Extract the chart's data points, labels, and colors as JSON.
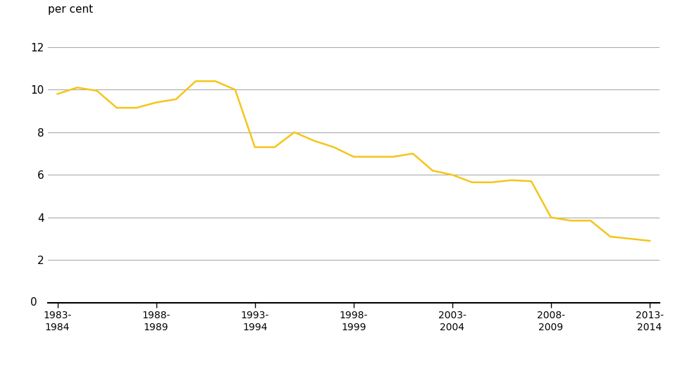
{
  "x_labels": [
    "1983-\n1984",
    "1988-\n1989",
    "1993-\n1994",
    "1998-\n1999",
    "2003-\n2004",
    "2008-\n2009",
    "2013-\n2014"
  ],
  "x_tick_positions": [
    0,
    5,
    10,
    15,
    20,
    25,
    30
  ],
  "years": [
    0,
    1,
    2,
    3,
    4,
    5,
    6,
    7,
    8,
    9,
    10,
    11,
    12,
    13,
    14,
    15,
    16,
    17,
    18,
    19,
    20,
    21,
    22,
    23,
    24,
    25,
    26,
    27,
    28,
    29,
    30
  ],
  "values": [
    9.8,
    10.1,
    9.95,
    9.15,
    9.15,
    9.4,
    9.55,
    10.4,
    10.4,
    10.0,
    7.3,
    7.3,
    8.0,
    7.6,
    7.3,
    6.85,
    6.85,
    6.85,
    7.0,
    6.2,
    6.0,
    5.65,
    5.65,
    5.75,
    5.7,
    4.0,
    3.85,
    3.85,
    3.1,
    3.0,
    2.9
  ],
  "line_color": "#F5C518",
  "line_width": 1.8,
  "ylabel": "per cent",
  "ylim": [
    0,
    13
  ],
  "yticks": [
    2,
    4,
    6,
    8,
    10,
    12
  ],
  "grid_color": "#aaaaaa",
  "background_color": "#ffffff",
  "axes_color": "#000000",
  "tick_fontsize": 11,
  "ylabel_fontsize": 11
}
